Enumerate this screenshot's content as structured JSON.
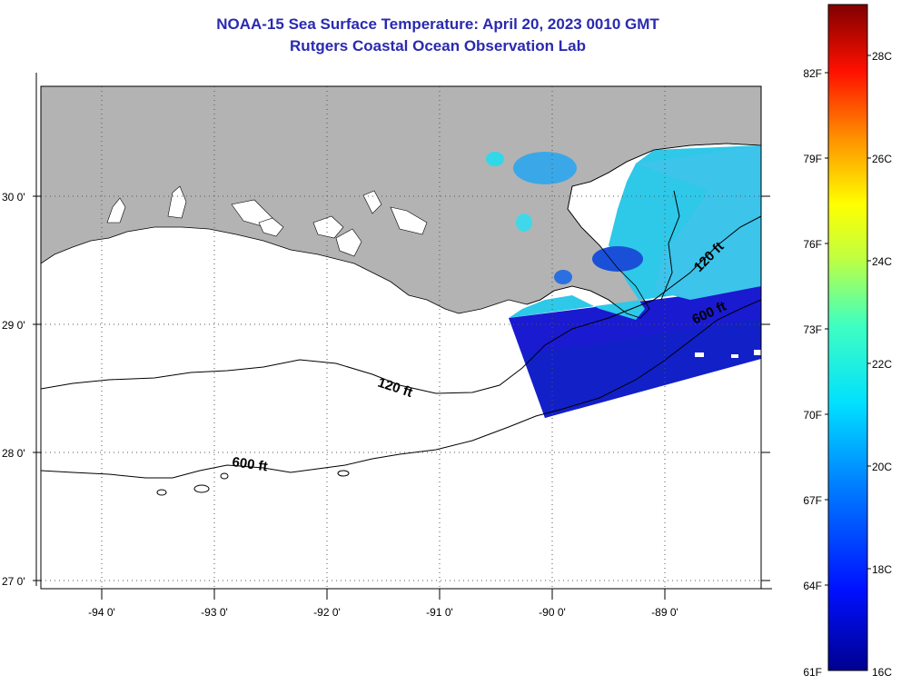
{
  "title": {
    "line1": "NOAA-15 Sea Surface Temperature:  April 20, 2023 0010 GMT",
    "line2": "Rutgers Coastal Ocean Observation Lab"
  },
  "map": {
    "lon_labels": [
      "-94 0'",
      "-93 0'",
      "-92 0'",
      "-91 0'",
      "-90 0'",
      "-89 0'"
    ],
    "lat_labels": [
      "30 0'",
      "29 0'",
      "28 0'",
      "27 0'"
    ],
    "contours": [
      "120 ft",
      "600 ft",
      "120 ft",
      "600 ft"
    ],
    "colors": {
      "land": "#b3b3b3",
      "ocean_nodata": "#ffffff",
      "contour": "#000000"
    }
  },
  "colorbar": {
    "fahrenheit_labels": [
      "82F",
      "79F",
      "76F",
      "73F",
      "70F",
      "67F",
      "64F",
      "61F"
    ],
    "celsius_labels": [
      "28C",
      "26C",
      "24C",
      "22C",
      "20C",
      "18C",
      "16C"
    ],
    "range_c": [
      16,
      29
    ]
  }
}
